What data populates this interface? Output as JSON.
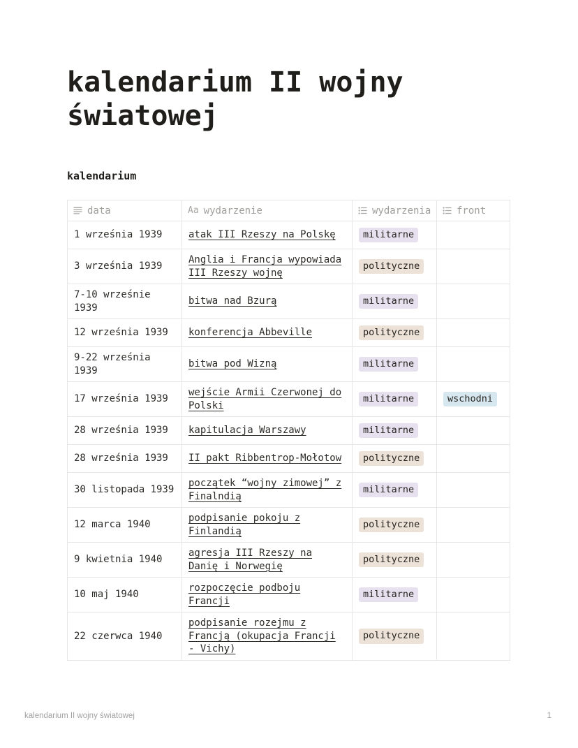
{
  "page": {
    "title": "kalendarium II wojny światowej",
    "section_header": "kalendarium"
  },
  "table": {
    "columns": [
      {
        "label": "data",
        "icon": "align-justify-icon",
        "type": "text"
      },
      {
        "label": "wydarzenie",
        "icon": "title-icon",
        "icon_glyph": "Aa",
        "type": "title"
      },
      {
        "label": "wydarzenia",
        "icon": "bulleted-list-icon",
        "type": "select"
      },
      {
        "label": "front",
        "icon": "bulleted-list-icon",
        "type": "select"
      }
    ],
    "tag_styles": {
      "militarne": "#E7E1EF",
      "polityczne": "#EDE2D8",
      "wschodni": "#D7E7EF"
    },
    "rows": [
      {
        "data": "1 września 1939",
        "wydarzenie": "atak III Rzeszy na Polskę",
        "wydarzenia": "militarne",
        "front": ""
      },
      {
        "data": "3 września 1939",
        "wydarzenie": "Anglia i Francja wypowiada III Rzeszy wojnę",
        "wydarzenia": "polityczne",
        "front": ""
      },
      {
        "data": "7-10 wrześnie 1939",
        "wydarzenie": "bitwa nad Bzurą",
        "wydarzenia": "militarne",
        "front": ""
      },
      {
        "data": "12 września 1939",
        "wydarzenie": "konferencja Abbeville",
        "wydarzenia": "polityczne",
        "front": ""
      },
      {
        "data": "9-22 września 1939",
        "wydarzenie": "bitwa pod Wizną",
        "wydarzenia": "militarne",
        "front": ""
      },
      {
        "data": "17 września 1939",
        "wydarzenie": "wejście Armii Czerwonej do Polski",
        "wydarzenia": "militarne",
        "front": "wschodni"
      },
      {
        "data": "28 września 1939",
        "wydarzenie": "kapitulacja Warszawy",
        "wydarzenia": "militarne",
        "front": ""
      },
      {
        "data": "28 września 1939",
        "wydarzenie": "II pakt Ribbentrop-Mołotow",
        "wydarzenia": "polityczne",
        "front": ""
      },
      {
        "data": "30 listopada 1939",
        "wydarzenie": "początek “wojny zimowej” z Finalndią",
        "wydarzenia": "militarne",
        "front": ""
      },
      {
        "data": "12 marca 1940",
        "wydarzenie": "podpisanie pokoju z Finlandią",
        "wydarzenia": "polityczne",
        "front": ""
      },
      {
        "data": "9 kwietnia 1940",
        "wydarzenie": "agresja III Rzeszy na Danię i Norwegię",
        "wydarzenia": "polityczne",
        "front": ""
      },
      {
        "data": "10 maj 1940",
        "wydarzenie": "rozpoczęcie podboju Francji",
        "wydarzenia": "militarne",
        "front": ""
      },
      {
        "data": "22 czerwca 1940",
        "wydarzenie": "podpisanie rozejmu z Francją (okupacja Francji - Vichy)",
        "wydarzenia": "polityczne",
        "front": ""
      }
    ]
  },
  "footer": {
    "left": "kalendarium II wojny światowej",
    "page_number": "1"
  },
  "colors": {
    "body_text": "#2e2c29",
    "header_text": "#a19f9c",
    "border": "#e7e6e4",
    "footer_text": "#a3a1a0",
    "tag_militarne_bg": "#E7E1EF",
    "tag_polityczne_bg": "#EDE2D8",
    "tag_wschodni_bg": "#D7E7EF"
  }
}
